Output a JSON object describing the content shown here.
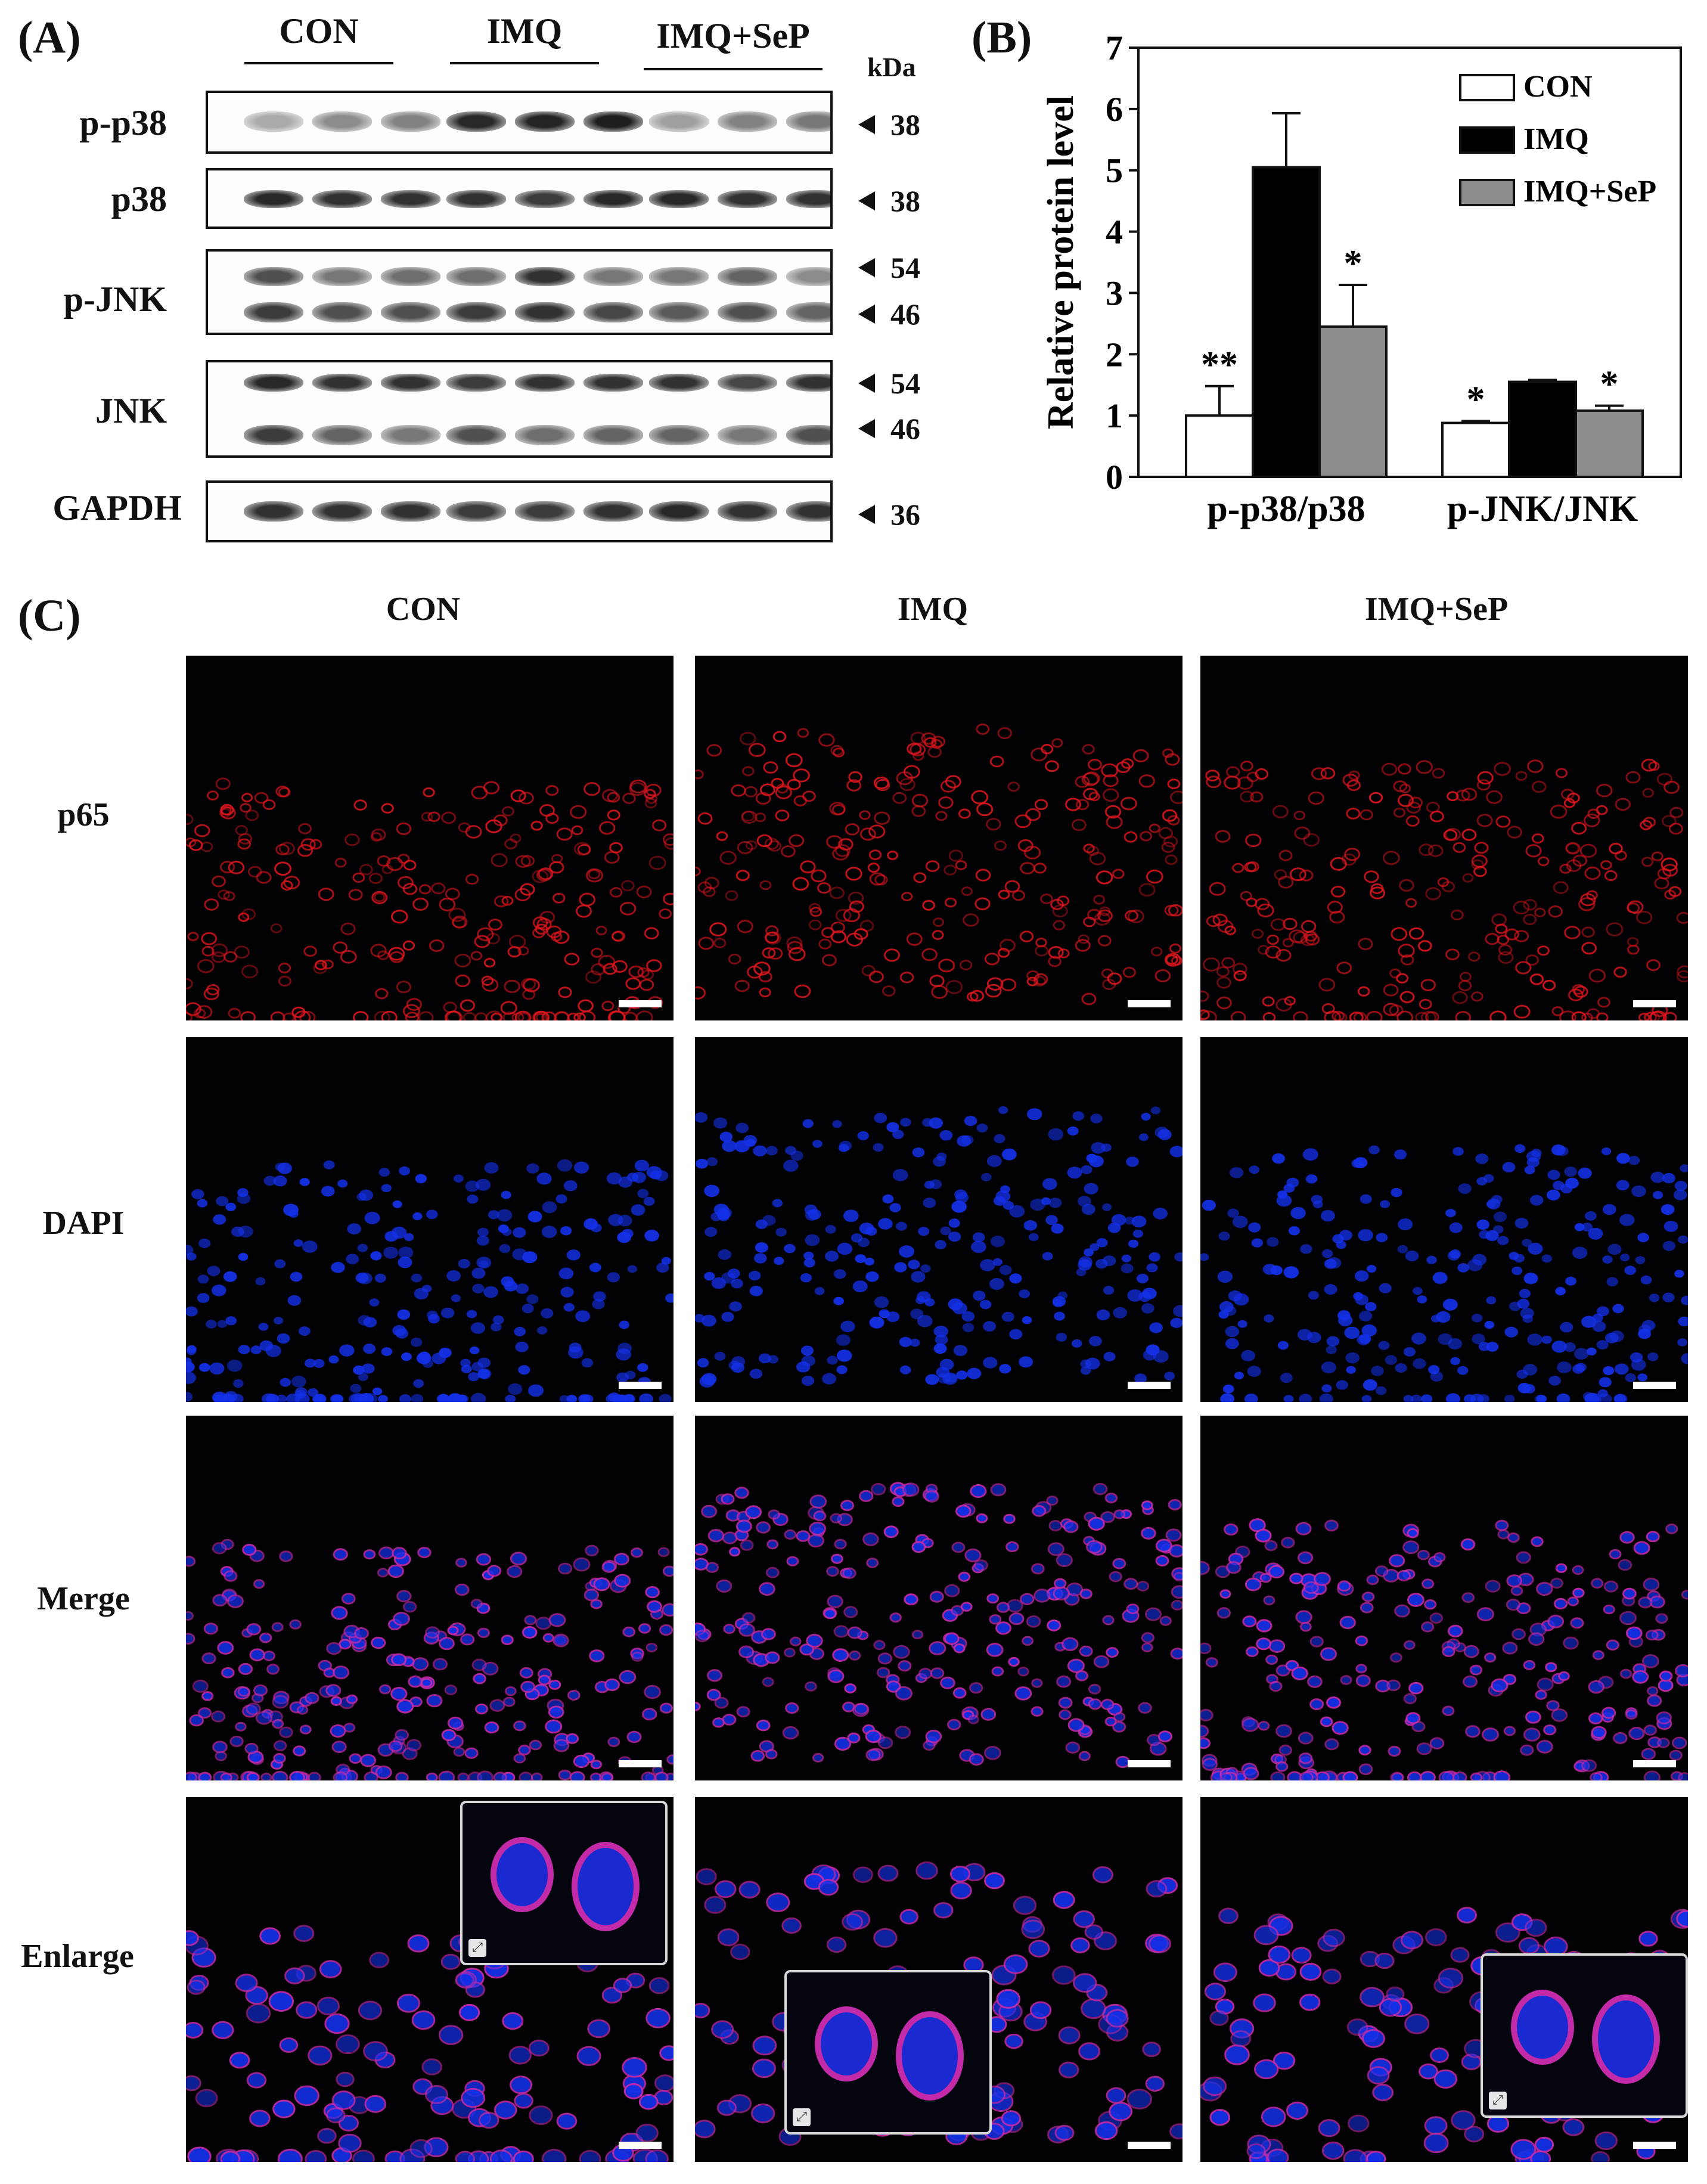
{
  "panels": {
    "a": "(A)",
    "b": "(B)",
    "c": "(C)"
  },
  "blot": {
    "groups": [
      "CON",
      "IMQ",
      "IMQ+SeP"
    ],
    "kda_header": "kDa",
    "rows": [
      {
        "label": "p-p38",
        "markers": [
          "38"
        ]
      },
      {
        "label": "p38",
        "markers": [
          "38"
        ]
      },
      {
        "label": "p-JNK",
        "markers": [
          "54",
          "46"
        ]
      },
      {
        "label": "JNK",
        "markers": [
          "54",
          "46"
        ]
      },
      {
        "label": "GAPDH",
        "markers": [
          "36"
        ]
      }
    ]
  },
  "chart_data": {
    "type": "bar",
    "ylabel": "Relative protein level",
    "ylim": [
      0,
      7
    ],
    "yticks": [
      "0",
      "1",
      "2",
      "3",
      "4",
      "5",
      "6",
      "7"
    ],
    "categories": [
      "p-p38/p38",
      "p-JNK/JNK"
    ],
    "series": [
      {
        "name": "CON",
        "values": [
          1.0,
          0.88
        ],
        "errors": [
          0.48,
          0.03
        ],
        "color": "#ffffff",
        "significance": [
          "**",
          "*"
        ]
      },
      {
        "name": "IMQ",
        "values": [
          5.05,
          1.55
        ],
        "errors": [
          0.88,
          0.03
        ],
        "color": "#000000",
        "significance": [
          "",
          ""
        ]
      },
      {
        "name": "IMQ+SeP",
        "values": [
          2.45,
          1.08
        ],
        "errors": [
          0.68,
          0.08
        ],
        "color": "#8c8c8c",
        "significance": [
          "*",
          "*"
        ]
      }
    ],
    "legend_position": "top-right",
    "grid": false
  },
  "micro": {
    "columns": [
      "CON",
      "IMQ",
      "IMQ+SeP"
    ],
    "rows": [
      "p65",
      "DAPI",
      "Merge",
      "Enlarge"
    ]
  },
  "colors": {
    "p65": "#e0161e",
    "dapi": "#1430e8",
    "merge": "#c22aa8"
  }
}
